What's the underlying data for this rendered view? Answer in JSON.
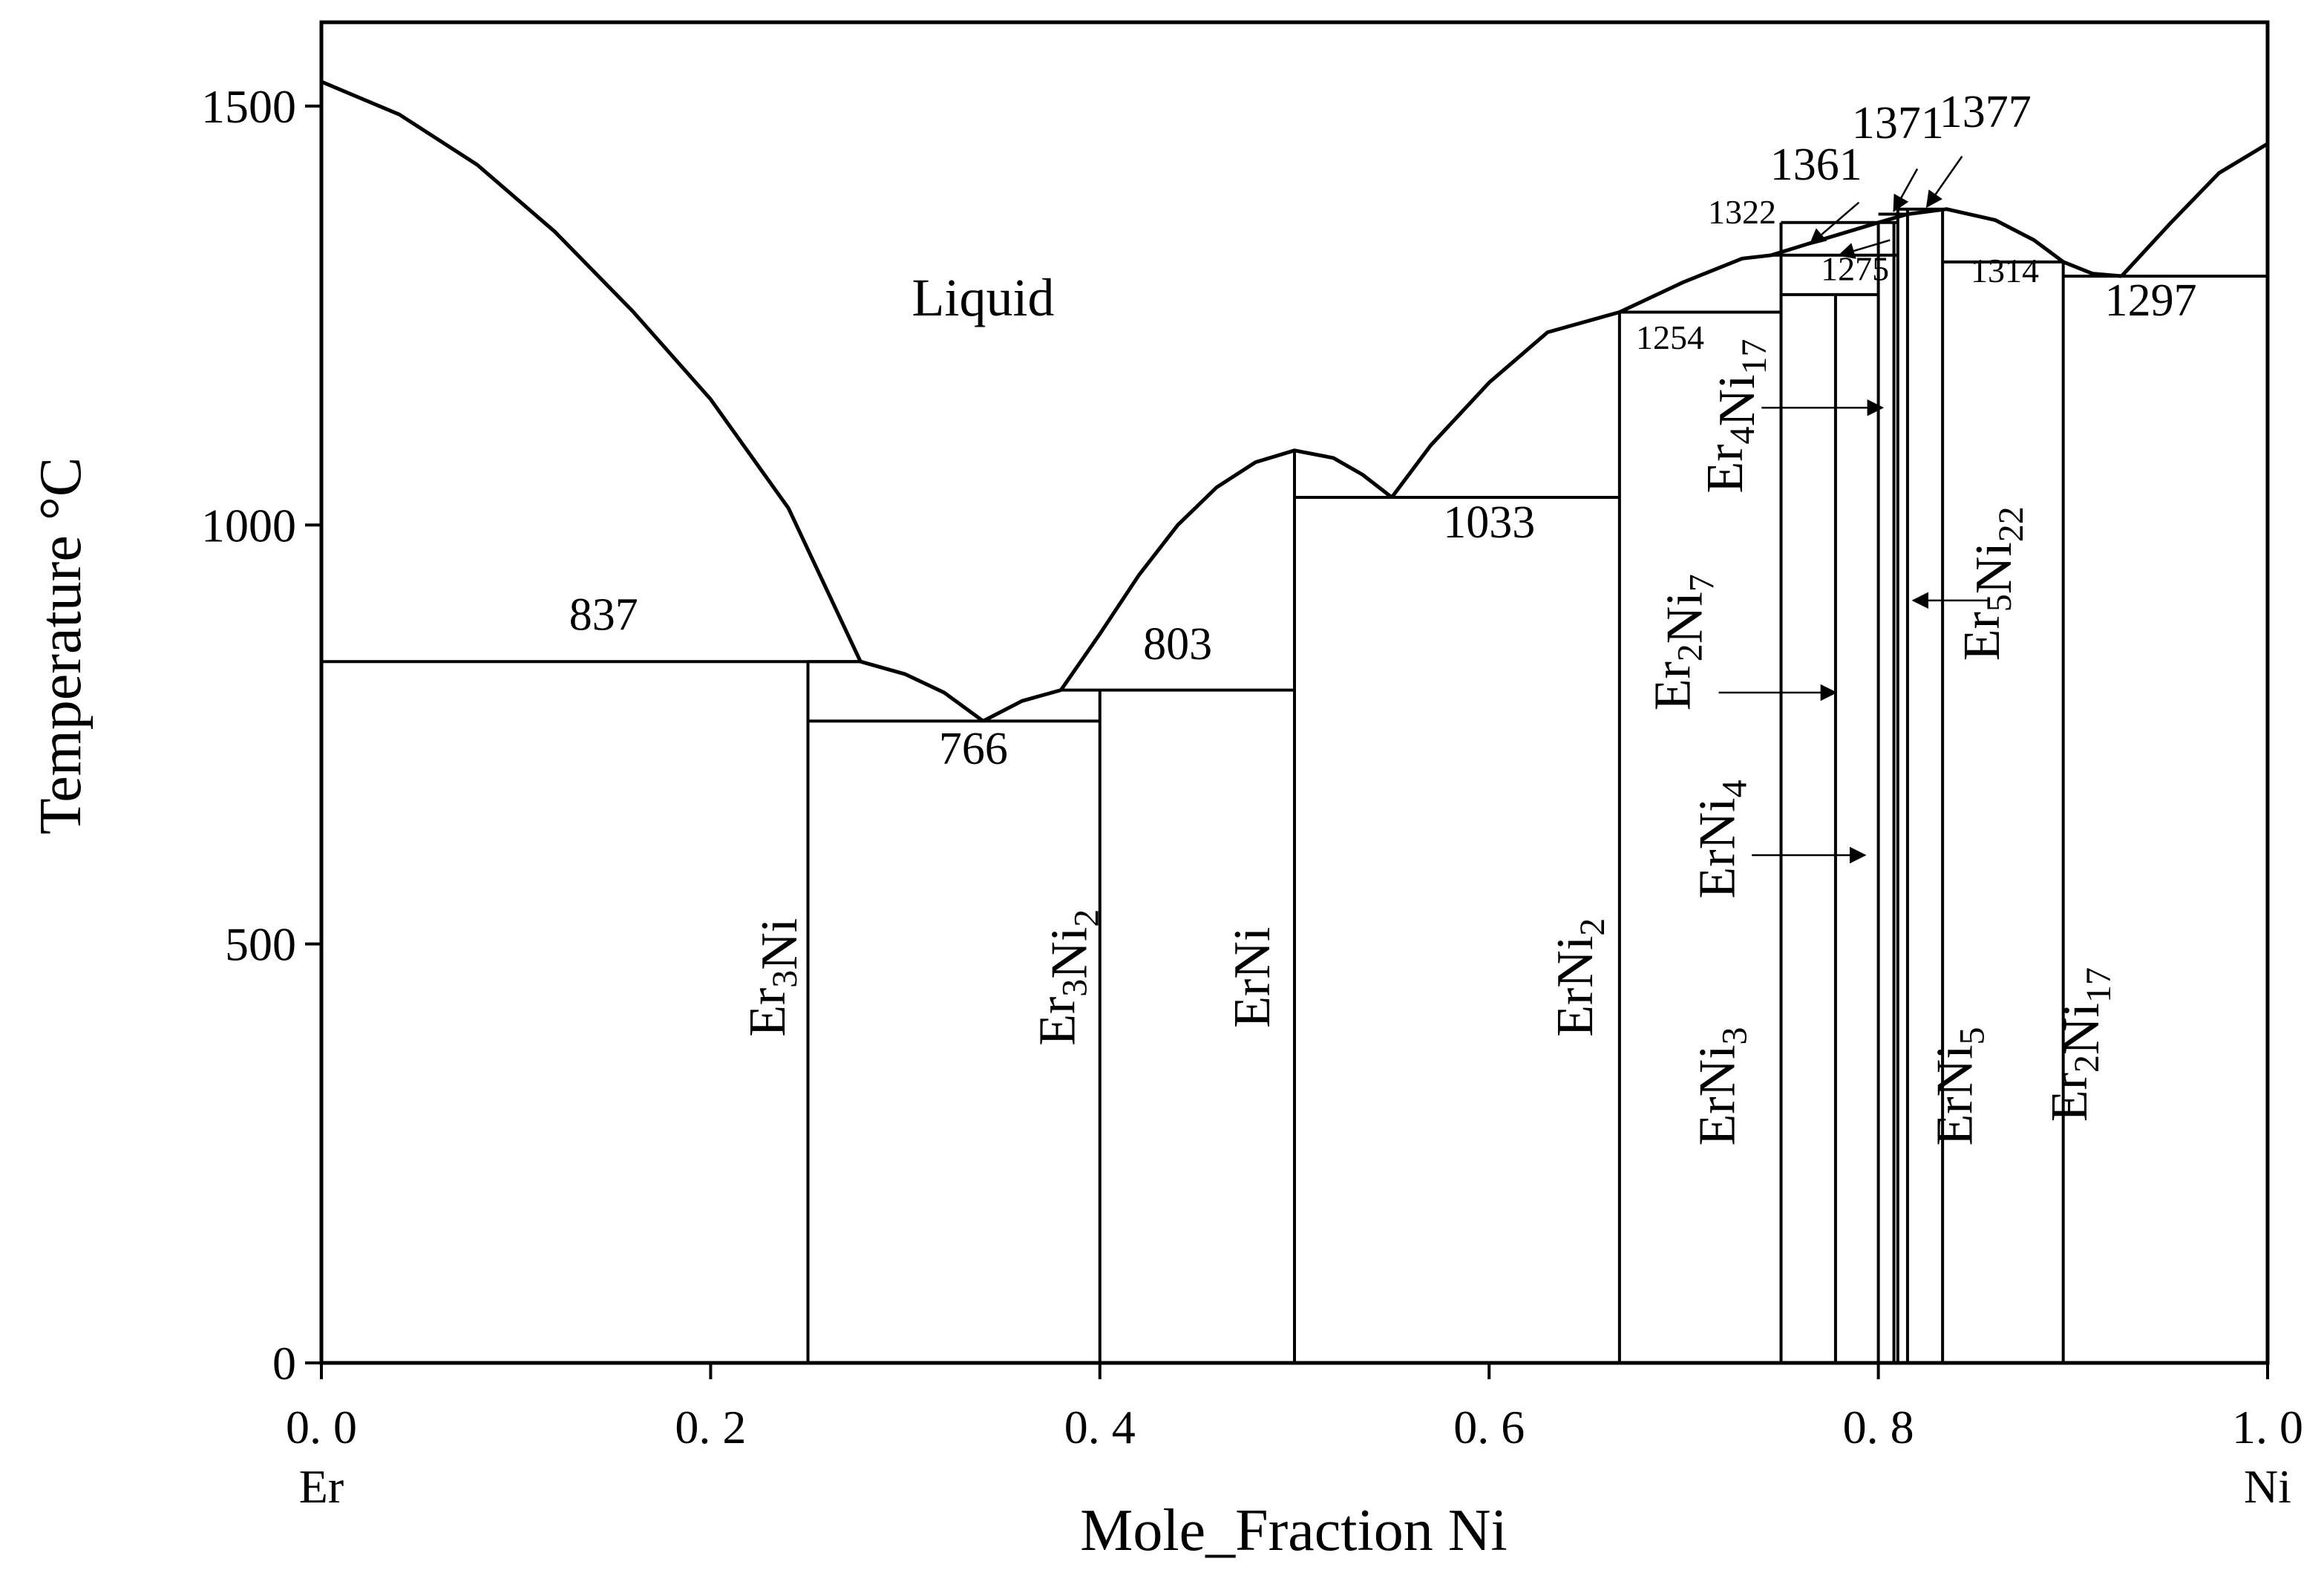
{
  "chart_data": {
    "type": "line",
    "title": "",
    "xlabel": "Mole_Fraction Ni",
    "ylabel": "Temperature °C",
    "xlim": [
      0,
      1
    ],
    "ylim": [
      0,
      1600
    ],
    "x_ticks": [
      0.0,
      0.2,
      0.4,
      0.6,
      0.8,
      1.0
    ],
    "x_tick_labels": [
      "0. 0",
      "0. 2",
      "0. 4",
      "0. 6",
      "0. 8",
      "1. 0"
    ],
    "y_ticks": [
      0,
      500,
      1000,
      1500
    ],
    "y_tick_labels": [
      "0",
      "500",
      "1000",
      "1500"
    ],
    "x_end_labels": [
      {
        "x": 0.0,
        "text": "Er"
      },
      {
        "x": 1.0,
        "text": "Ni"
      }
    ],
    "grid": false,
    "liquidus_segments": [
      {
        "name": "",
        "points": [
          [
            0.0,
            1529
          ],
          [
            0.04,
            1490
          ],
          [
            0.08,
            1430
          ],
          [
            0.12,
            1350
          ],
          [
            0.16,
            1255
          ],
          [
            0.2,
            1150
          ],
          [
            0.24,
            1020
          ],
          [
            0.277,
            837
          ]
        ]
      },
      {
        "name": "",
        "points": [
          [
            0.277,
            837
          ],
          [
            0.3,
            822
          ],
          [
            0.32,
            800
          ],
          [
            0.34,
            766
          ]
        ]
      },
      {
        "name": "",
        "points": [
          [
            0.34,
            766
          ],
          [
            0.36,
            790
          ],
          [
            0.38,
            803
          ]
        ]
      },
      {
        "name": "",
        "points": [
          [
            0.38,
            803
          ],
          [
            0.4,
            870
          ],
          [
            0.42,
            940
          ],
          [
            0.44,
            1000
          ],
          [
            0.46,
            1045
          ],
          [
            0.48,
            1075
          ],
          [
            0.5,
            1089
          ],
          [
            0.52,
            1080
          ],
          [
            0.535,
            1060
          ],
          [
            0.55,
            1033
          ]
        ]
      },
      {
        "name": "",
        "points": [
          [
            0.55,
            1033
          ],
          [
            0.57,
            1095
          ],
          [
            0.6,
            1170
          ],
          [
            0.63,
            1230
          ],
          [
            0.667,
            1254
          ]
        ]
      },
      {
        "name": "",
        "points": [
          [
            0.667,
            1254
          ],
          [
            0.7,
            1290
          ],
          [
            0.73,
            1318
          ],
          [
            0.745,
            1322
          ]
        ]
      },
      {
        "name": "",
        "points": [
          [
            0.745,
            1322
          ],
          [
            0.77,
            1340
          ],
          [
            0.8,
            1361
          ],
          [
            0.815,
            1371
          ],
          [
            0.835,
            1377
          ],
          [
            0.86,
            1364
          ],
          [
            0.88,
            1340
          ],
          [
            0.895,
            1314
          ]
        ]
      },
      {
        "name": "",
        "points": [
          [
            0.895,
            1314
          ],
          [
            0.91,
            1300
          ],
          [
            0.925,
            1297
          ]
        ]
      },
      {
        "name": "",
        "points": [
          [
            0.925,
            1297
          ],
          [
            0.95,
            1360
          ],
          [
            0.975,
            1420
          ],
          [
            1.0,
            1455
          ]
        ]
      }
    ],
    "invariant_lines": [
      {
        "x1": 0.0,
        "x2": 0.277,
        "y": 837
      },
      {
        "x1": 0.25,
        "x2": 0.4,
        "y": 766
      },
      {
        "x1": 0.25,
        "x2": 0.277,
        "y": 837
      },
      {
        "x1": 0.38,
        "x2": 0.5,
        "y": 803
      },
      {
        "x1": 0.5,
        "x2": 0.667,
        "y": 1033
      },
      {
        "x1": 0.667,
        "x2": 0.75,
        "y": 1254
      },
      {
        "x1": 0.75,
        "x2": 0.8,
        "y": 1275
      },
      {
        "x1": 0.745,
        "x2": 0.81,
        "y": 1322
      },
      {
        "x1": 0.75,
        "x2": 0.81,
        "y": 1361
      },
      {
        "x1": 0.8,
        "x2": 0.815,
        "y": 1371
      },
      {
        "x1": 0.81,
        "x2": 0.833,
        "y": 1377
      },
      {
        "x1": 0.833,
        "x2": 0.895,
        "y": 1314
      },
      {
        "x1": 0.895,
        "x2": 1.0,
        "y": 1297
      }
    ],
    "compound_lines": [
      {
        "x": 0.25,
        "y_top": 837
      },
      {
        "x": 0.4,
        "y_top": 803
      },
      {
        "x": 0.5,
        "y_top": 1089
      },
      {
        "x": 0.667,
        "y_top": 1254
      },
      {
        "x": 0.75,
        "y_top": 1361
      },
      {
        "x": 0.778,
        "y_top": 1275
      },
      {
        "x": 0.8,
        "y_top": 1361
      },
      {
        "x": 0.808,
        "y_top": 1361
      },
      {
        "x": 0.81,
        "y_top": 1377
      },
      {
        "x": 0.815,
        "y_top": 1377
      },
      {
        "x": 0.833,
        "y_top": 1377
      },
      {
        "x": 0.895,
        "y_top": 1314
      }
    ],
    "region_labels": [
      {
        "text": "Liquid",
        "x": 0.34,
        "y": 1250
      }
    ],
    "temperature_labels": [
      {
        "text": "837",
        "x": 0.145,
        "y": 875,
        "size": "normal"
      },
      {
        "text": "766",
        "x": 0.335,
        "y": 715,
        "size": "normal"
      },
      {
        "text": "803",
        "x": 0.44,
        "y": 840,
        "size": "normal"
      },
      {
        "text": "1033",
        "x": 0.6,
        "y": 985,
        "size": "normal"
      },
      {
        "text": "1254",
        "x": 0.693,
        "y": 1210,
        "size": "small"
      },
      {
        "text": "1275",
        "x": 0.788,
        "y": 1292,
        "size": "small"
      },
      {
        "text": "1322",
        "x": 0.73,
        "y": 1360,
        "size": "small"
      },
      {
        "text": "1361",
        "x": 0.768,
        "y": 1412,
        "size": "normal"
      },
      {
        "text": "1371",
        "x": 0.81,
        "y": 1462,
        "size": "normal"
      },
      {
        "text": "1377",
        "x": 0.855,
        "y": 1475,
        "size": "normal"
      },
      {
        "text": "1314",
        "x": 0.865,
        "y": 1290,
        "size": "small"
      },
      {
        "text": "1297",
        "x": 0.94,
        "y": 1250,
        "size": "normal"
      }
    ],
    "compound_labels": [
      {
        "el": "Er",
        "sub1": "3",
        "el2": "Ni",
        "sub2": "",
        "x": 0.238,
        "y": 460
      },
      {
        "el": "Er",
        "sub1": "3",
        "el2": "Ni",
        "sub2": "2",
        "x": 0.387,
        "y": 460
      },
      {
        "el": "ErNi",
        "sub1": "",
        "el2": "",
        "sub2": "",
        "x": 0.487,
        "y": 460
      },
      {
        "el": "ErNi",
        "sub1": "2",
        "el2": "",
        "sub2": "",
        "x": 0.653,
        "y": 460
      },
      {
        "el": "ErNi",
        "sub1": "3",
        "el2": "",
        "sub2": "",
        "x": 0.726,
        "y": 330
      },
      {
        "el": "ErNi",
        "sub1": "4",
        "el2": "",
        "sub2": "",
        "x": 0.726,
        "y": 625
      },
      {
        "el": "Er",
        "sub1": "2",
        "el2": "Ni",
        "sub2": "7",
        "x": 0.703,
        "y": 860
      },
      {
        "el": "Er",
        "sub1": "4",
        "el2": "Ni",
        "sub2": "17",
        "x": 0.73,
        "y": 1130
      },
      {
        "el": "Er",
        "sub1": "5",
        "el2": "Ni",
        "sub2": "22",
        "x": 0.862,
        "y": 930
      },
      {
        "el": "ErNi",
        "sub1": "5",
        "el2": "",
        "sub2": "",
        "x": 0.848,
        "y": 330
      },
      {
        "el": "Er",
        "sub1": "2",
        "el2": "Ni",
        "sub2": "17",
        "x": 0.907,
        "y": 380
      }
    ],
    "arrows": [
      {
        "from": [
          0.74,
          1140
        ],
        "to": [
          0.802,
          1140
        ]
      },
      {
        "from": [
          0.856,
          910
        ],
        "to": [
          0.818,
          910
        ]
      },
      {
        "from": [
          0.718,
          800
        ],
        "to": [
          0.778,
          800
        ]
      },
      {
        "from": [
          0.735,
          606
        ],
        "to": [
          0.793,
          606
        ]
      },
      {
        "from": [
          0.79,
          1385
        ],
        "to": [
          0.765,
          1335
        ]
      },
      {
        "from": [
          0.806,
          1340
        ],
        "to": [
          0.78,
          1322
        ]
      },
      {
        "from": [
          0.82,
          1425
        ],
        "to": [
          0.808,
          1375
        ]
      },
      {
        "from": [
          0.843,
          1440
        ],
        "to": [
          0.825,
          1380
        ]
      }
    ]
  }
}
